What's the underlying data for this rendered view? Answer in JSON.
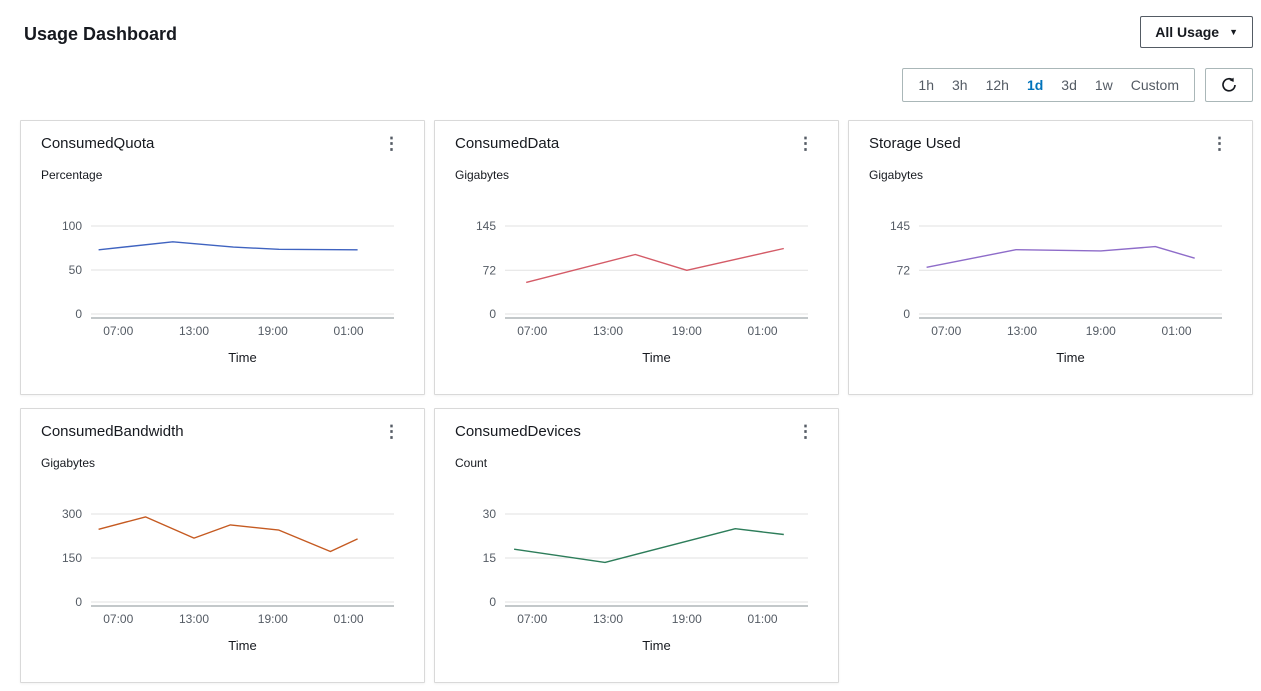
{
  "header": {
    "title": "Usage Dashboard",
    "usage_filter_label": "All Usage"
  },
  "icons": {
    "ellipsis": "⋮",
    "caret_down": "▼",
    "refresh": "refresh-circular-arrow"
  },
  "colors": {
    "selected_range": "#0073bb",
    "gridline": "#e2e2e2",
    "axis": "#879196",
    "tick_label": "#545b64",
    "card_border": "#d9d9d9"
  },
  "toolbar": {
    "time_ranges": [
      {
        "label": "1h",
        "selected": false
      },
      {
        "label": "3h",
        "selected": false
      },
      {
        "label": "12h",
        "selected": false
      },
      {
        "label": "1d",
        "selected": true
      },
      {
        "label": "3d",
        "selected": false
      },
      {
        "label": "1w",
        "selected": false
      },
      {
        "label": "Custom",
        "selected": false
      }
    ],
    "selected_range": "1d"
  },
  "chart_data": [
    {
      "type": "line",
      "title": "ConsumedQuota",
      "unit": "Percentage",
      "xlabel": "Time",
      "color": "#3f63c0",
      "ylim": [
        0,
        100
      ],
      "yticks": [
        0,
        50,
        100
      ],
      "xticks": [
        {
          "pos": 0.09,
          "label": "07:00"
        },
        {
          "pos": 0.34,
          "label": "13:00"
        },
        {
          "pos": 0.6,
          "label": "19:00"
        },
        {
          "pos": 0.85,
          "label": "01:00"
        }
      ],
      "points": [
        [
          0.025,
          73
        ],
        [
          0.27,
          82
        ],
        [
          0.47,
          76
        ],
        [
          0.62,
          73.5
        ],
        [
          0.88,
          73
        ]
      ]
    },
    {
      "type": "line",
      "title": "ConsumedData",
      "unit": "Gigabytes",
      "xlabel": "Time",
      "color": "#d45b67",
      "ylim": [
        0,
        145
      ],
      "yticks": [
        0,
        72,
        145
      ],
      "xticks": [
        {
          "pos": 0.09,
          "label": "07:00"
        },
        {
          "pos": 0.34,
          "label": "13:00"
        },
        {
          "pos": 0.6,
          "label": "19:00"
        },
        {
          "pos": 0.85,
          "label": "01:00"
        }
      ],
      "points": [
        [
          0.07,
          52
        ],
        [
          0.43,
          98
        ],
        [
          0.6,
          72
        ],
        [
          0.92,
          108
        ]
      ]
    },
    {
      "type": "line",
      "title": "Storage Used",
      "unit": "Gigabytes",
      "xlabel": "Time",
      "color": "#8e6cc9",
      "ylim": [
        0,
        145
      ],
      "yticks": [
        0,
        72,
        145
      ],
      "xticks": [
        {
          "pos": 0.09,
          "label": "07:00"
        },
        {
          "pos": 0.34,
          "label": "13:00"
        },
        {
          "pos": 0.6,
          "label": "19:00"
        },
        {
          "pos": 0.85,
          "label": "01:00"
        }
      ],
      "points": [
        [
          0.025,
          77
        ],
        [
          0.32,
          106
        ],
        [
          0.6,
          104
        ],
        [
          0.78,
          111
        ],
        [
          0.91,
          92
        ]
      ]
    },
    {
      "type": "line",
      "title": "ConsumedBandwidth",
      "unit": "Gigabytes",
      "xlabel": "Time",
      "color": "#c55a21",
      "ylim": [
        0,
        300
      ],
      "yticks": [
        0,
        150,
        300
      ],
      "xticks": [
        {
          "pos": 0.09,
          "label": "07:00"
        },
        {
          "pos": 0.34,
          "label": "13:00"
        },
        {
          "pos": 0.6,
          "label": "19:00"
        },
        {
          "pos": 0.85,
          "label": "01:00"
        }
      ],
      "points": [
        [
          0.025,
          248
        ],
        [
          0.18,
          290
        ],
        [
          0.34,
          218
        ],
        [
          0.46,
          263
        ],
        [
          0.62,
          245
        ],
        [
          0.79,
          172
        ],
        [
          0.88,
          215
        ]
      ]
    },
    {
      "type": "line",
      "title": "ConsumedDevices",
      "unit": "Count",
      "xlabel": "Time",
      "color": "#2d7d5a",
      "ylim": [
        0,
        30
      ],
      "yticks": [
        0,
        15,
        30
      ],
      "xticks": [
        {
          "pos": 0.09,
          "label": "07:00"
        },
        {
          "pos": 0.34,
          "label": "13:00"
        },
        {
          "pos": 0.6,
          "label": "19:00"
        },
        {
          "pos": 0.85,
          "label": "01:00"
        }
      ],
      "points": [
        [
          0.03,
          18
        ],
        [
          0.33,
          13.5
        ],
        [
          0.76,
          25
        ],
        [
          0.92,
          23
        ]
      ]
    }
  ]
}
